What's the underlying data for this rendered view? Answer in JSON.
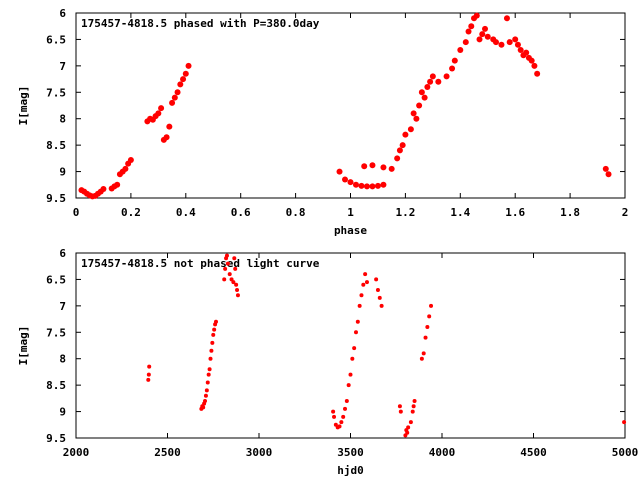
{
  "chart_data": [
    {
      "type": "scatter",
      "title": "175457-4818.5 phased with P=380.0day",
      "xlabel": "phase",
      "ylabel": "I[mag]",
      "xlim": [
        0,
        2
      ],
      "ylim": [
        9.5,
        6
      ],
      "y_inverted": true,
      "xticks": [
        "0",
        "0.2",
        "0.4",
        "0.6",
        "0.8",
        "1",
        "1.2",
        "1.4",
        "1.6",
        "1.8",
        "2"
      ],
      "yticks": [
        "6",
        "6.5",
        "7",
        "7.5",
        "8",
        "8.5",
        "9",
        "9.5"
      ],
      "grid": false,
      "marker_color": "#ff0000",
      "series": [
        {
          "points": [
            [
              0.02,
              9.35
            ],
            [
              0.03,
              9.38
            ],
            [
              0.04,
              9.42
            ],
            [
              0.05,
              9.45
            ],
            [
              0.06,
              9.47
            ],
            [
              0.07,
              9.46
            ],
            [
              0.08,
              9.42
            ],
            [
              0.09,
              9.38
            ],
            [
              0.1,
              9.33
            ],
            [
              0.13,
              9.32
            ],
            [
              0.14,
              9.28
            ],
            [
              0.15,
              9.25
            ],
            [
              0.16,
              9.05
            ],
            [
              0.17,
              9.0
            ],
            [
              0.18,
              8.95
            ],
            [
              0.19,
              8.85
            ],
            [
              0.2,
              8.78
            ],
            [
              0.26,
              8.05
            ],
            [
              0.27,
              8.0
            ],
            [
              0.28,
              8.02
            ],
            [
              0.29,
              7.95
            ],
            [
              0.3,
              7.9
            ],
            [
              0.31,
              7.8
            ],
            [
              0.32,
              8.4
            ],
            [
              0.33,
              8.35
            ],
            [
              0.34,
              8.15
            ],
            [
              0.35,
              7.7
            ],
            [
              0.36,
              7.6
            ],
            [
              0.37,
              7.5
            ],
            [
              0.38,
              7.35
            ],
            [
              0.39,
              7.25
            ],
            [
              0.4,
              7.15
            ],
            [
              0.41,
              7.0
            ],
            [
              0.96,
              9.0
            ],
            [
              0.98,
              9.15
            ],
            [
              1.0,
              9.2
            ],
            [
              1.02,
              9.25
            ],
            [
              1.04,
              9.27
            ],
            [
              1.06,
              9.28
            ],
            [
              1.08,
              9.28
            ],
            [
              1.1,
              9.27
            ],
            [
              1.12,
              9.25
            ],
            [
              1.05,
              8.9
            ],
            [
              1.08,
              8.88
            ],
            [
              1.12,
              8.92
            ],
            [
              1.15,
              8.95
            ],
            [
              1.17,
              8.75
            ],
            [
              1.18,
              8.6
            ],
            [
              1.19,
              8.5
            ],
            [
              1.2,
              8.3
            ],
            [
              1.22,
              8.2
            ],
            [
              1.23,
              7.9
            ],
            [
              1.24,
              8.0
            ],
            [
              1.25,
              7.75
            ],
            [
              1.26,
              7.5
            ],
            [
              1.27,
              7.6
            ],
            [
              1.28,
              7.4
            ],
            [
              1.29,
              7.3
            ],
            [
              1.3,
              7.2
            ],
            [
              1.32,
              7.3
            ],
            [
              1.35,
              7.2
            ],
            [
              1.37,
              7.05
            ],
            [
              1.38,
              6.9
            ],
            [
              1.4,
              6.7
            ],
            [
              1.42,
              6.55
            ],
            [
              1.43,
              6.35
            ],
            [
              1.44,
              6.25
            ],
            [
              1.45,
              6.1
            ],
            [
              1.46,
              6.05
            ],
            [
              1.47,
              6.5
            ],
            [
              1.48,
              6.4
            ],
            [
              1.49,
              6.3
            ],
            [
              1.5,
              6.45
            ],
            [
              1.52,
              6.5
            ],
            [
              1.53,
              6.55
            ],
            [
              1.55,
              6.6
            ],
            [
              1.57,
              6.1
            ],
            [
              1.58,
              6.55
            ],
            [
              1.6,
              6.5
            ],
            [
              1.61,
              6.6
            ],
            [
              1.62,
              6.7
            ],
            [
              1.63,
              6.8
            ],
            [
              1.64,
              6.75
            ],
            [
              1.65,
              6.85
            ],
            [
              1.66,
              6.9
            ],
            [
              1.67,
              7.0
            ],
            [
              1.68,
              7.15
            ],
            [
              1.93,
              8.95
            ],
            [
              1.94,
              9.05
            ]
          ]
        }
      ]
    },
    {
      "type": "scatter",
      "title": "175457-4818.5 not phased light curve",
      "xlabel": "hjd0",
      "ylabel": "I[mag]",
      "xlim": [
        2000,
        5000
      ],
      "ylim": [
        9.5,
        6
      ],
      "y_inverted": true,
      "xticks": [
        "2000",
        "2500",
        "3000",
        "3500",
        "4000",
        "4500",
        "5000"
      ],
      "yticks": [
        "6",
        "6.5",
        "7",
        "7.5",
        "8",
        "8.5",
        "9",
        "9.5"
      ],
      "grid": false,
      "marker_color": "#ff0000",
      "series": [
        {
          "points": [
            [
              2395,
              8.4
            ],
            [
              2398,
              8.3
            ],
            [
              2400,
              8.15
            ],
            [
              2685,
              8.95
            ],
            [
              2690,
              8.9
            ],
            [
              2695,
              8.92
            ],
            [
              2700,
              8.85
            ],
            [
              2705,
              8.8
            ],
            [
              2710,
              8.7
            ],
            [
              2715,
              8.6
            ],
            [
              2720,
              8.45
            ],
            [
              2725,
              8.3
            ],
            [
              2730,
              8.2
            ],
            [
              2735,
              8.0
            ],
            [
              2740,
              7.85
            ],
            [
              2745,
              7.7
            ],
            [
              2750,
              7.55
            ],
            [
              2755,
              7.45
            ],
            [
              2760,
              7.35
            ],
            [
              2765,
              7.3
            ],
            [
              2810,
              6.5
            ],
            [
              2815,
              6.3
            ],
            [
              2820,
              6.1
            ],
            [
              2825,
              6.05
            ],
            [
              2830,
              6.2
            ],
            [
              2840,
              6.4
            ],
            [
              2850,
              6.5
            ],
            [
              2860,
              6.55
            ],
            [
              2865,
              6.1
            ],
            [
              2870,
              6.3
            ],
            [
              2875,
              6.6
            ],
            [
              2880,
              6.7
            ],
            [
              2885,
              6.8
            ],
            [
              3405,
              9.0
            ],
            [
              3410,
              9.1
            ],
            [
              3420,
              9.25
            ],
            [
              3430,
              9.3
            ],
            [
              3440,
              9.28
            ],
            [
              3450,
              9.2
            ],
            [
              3460,
              9.1
            ],
            [
              3470,
              8.95
            ],
            [
              3480,
              8.8
            ],
            [
              3490,
              8.5
            ],
            [
              3500,
              8.3
            ],
            [
              3510,
              8.0
            ],
            [
              3520,
              7.8
            ],
            [
              3530,
              7.5
            ],
            [
              3540,
              7.3
            ],
            [
              3550,
              7.0
            ],
            [
              3560,
              6.8
            ],
            [
              3570,
              6.6
            ],
            [
              3580,
              6.4
            ],
            [
              3590,
              6.55
            ],
            [
              3640,
              6.5
            ],
            [
              3650,
              6.7
            ],
            [
              3660,
              6.85
            ],
            [
              3670,
              7.0
            ],
            [
              3770,
              8.9
            ],
            [
              3775,
              9.0
            ],
            [
              3800,
              9.45
            ],
            [
              3805,
              9.35
            ],
            [
              3810,
              9.4
            ],
            [
              3815,
              9.3
            ],
            [
              3830,
              9.2
            ],
            [
              3840,
              9.0
            ],
            [
              3845,
              8.9
            ],
            [
              3850,
              8.8
            ],
            [
              3890,
              8.0
            ],
            [
              3900,
              7.9
            ],
            [
              3910,
              7.6
            ],
            [
              3920,
              7.4
            ],
            [
              3930,
              7.2
            ],
            [
              3940,
              7.0
            ],
            [
              4995,
              9.2
            ]
          ]
        }
      ]
    }
  ]
}
